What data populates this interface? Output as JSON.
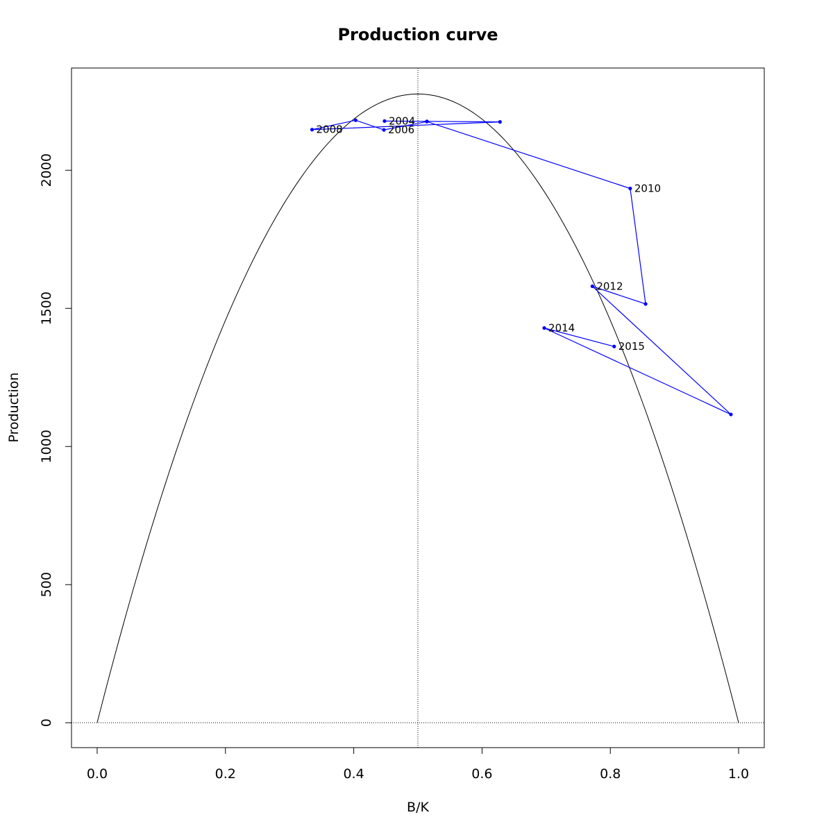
{
  "chart_data": {
    "type": "line",
    "title": "Production curve",
    "xlabel": "B/K",
    "ylabel": "Production",
    "xlim": [
      -0.04,
      1.04
    ],
    "ylim": [
      -90,
      2370
    ],
    "x_ticks": [
      0.0,
      0.2,
      0.4,
      0.6,
      0.8,
      1.0
    ],
    "x_tick_labels": [
      "0.0",
      "0.2",
      "0.4",
      "0.6",
      "0.8",
      "1.0"
    ],
    "y_ticks": [
      0,
      500,
      1000,
      1500,
      2000
    ],
    "y_tick_labels": [
      "0",
      "500",
      "1000",
      "1500",
      "2000"
    ],
    "reference_lines": {
      "vertical_x": 0.5,
      "horizontal_y": 0,
      "style": "dotted"
    },
    "curve": {
      "type": "parabola",
      "peak_x": 0.5,
      "peak_y": 2276,
      "roots": [
        0.0,
        1.0
      ],
      "color": "#000000"
    },
    "series": [
      {
        "color": "#0000ff",
        "points": [
          {
            "x": 0.448,
            "y": 2178,
            "label": "2004"
          },
          {
            "x": 0.514,
            "y": 2177,
            "label": ""
          },
          {
            "x": 0.628,
            "y": 2175,
            "label": ""
          },
          {
            "x": 0.335,
            "y": 2147,
            "label": "2008"
          },
          {
            "x": 0.403,
            "y": 2181,
            "label": ""
          },
          {
            "x": 0.447,
            "y": 2146,
            "label": "2006"
          },
          {
            "x": 0.514,
            "y": 2176,
            "label": ""
          },
          {
            "x": 0.831,
            "y": 1934,
            "label": "2010"
          },
          {
            "x": 0.855,
            "y": 1516,
            "label": ""
          },
          {
            "x": 0.772,
            "y": 1580,
            "label": "2012"
          },
          {
            "x": 0.988,
            "y": 1116,
            "label": ""
          },
          {
            "x": 0.697,
            "y": 1429,
            "label": "2014"
          },
          {
            "x": 0.806,
            "y": 1362,
            "label": "2015"
          }
        ]
      }
    ],
    "grid": false,
    "legend": "none"
  }
}
